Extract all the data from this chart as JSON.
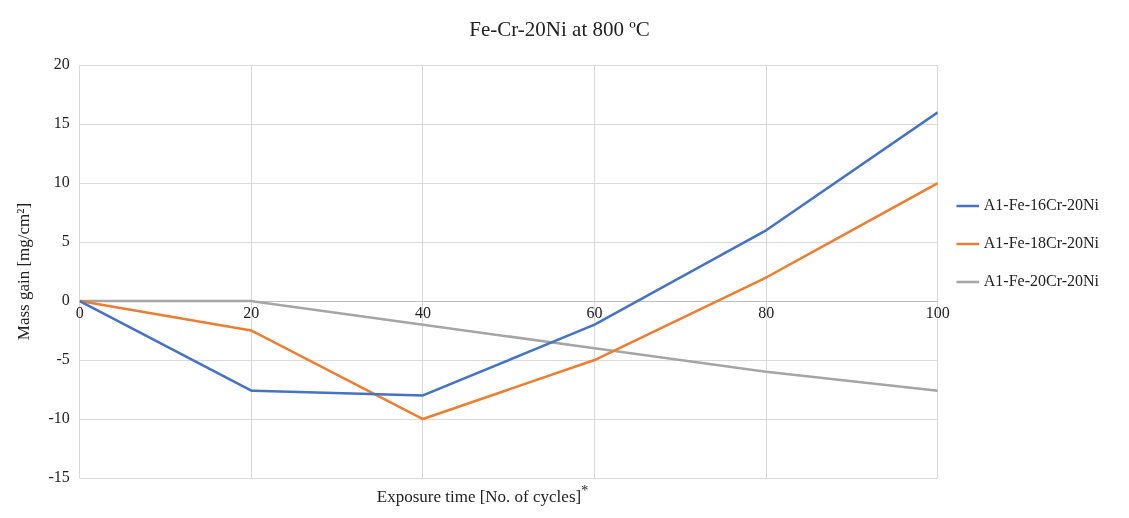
{
  "chart_data": {
    "type": "line",
    "title": "Fe-Cr-20Ni at 800 ºC",
    "xlabel": "Exposure time [No. of cycles]$^{*}$",
    "ylabel": "Mass gain [mg/cm²]",
    "x": [
      0,
      20,
      40,
      60,
      80,
      100
    ],
    "series": [
      {
        "name": "A1-Fe-16Cr-20Ni",
        "color": "#4472c4",
        "values": [
          0,
          -7.6,
          -8,
          -2,
          6,
          16
        ]
      },
      {
        "name": "A1-Fe-18Cr-20Ni",
        "color": "#ed7d31",
        "values": [
          0,
          -2.5,
          -10,
          -5,
          2,
          10
        ]
      },
      {
        "name": "A1-Fe-20Cr-20Ni",
        "color": "#a5a5a5",
        "values": [
          0,
          0,
          -2,
          -4,
          -6,
          -7.6
        ]
      }
    ],
    "xlim": [
      0,
      100
    ],
    "xticks": [
      0,
      20,
      40,
      60,
      80,
      100
    ],
    "ylim": [
      -15,
      20
    ],
    "yticks": [
      -15,
      -10,
      -5,
      0,
      5,
      10,
      15,
      20
    ],
    "grid": true,
    "legend": "right",
    "marker": "none",
    "line_style": "solid"
  }
}
